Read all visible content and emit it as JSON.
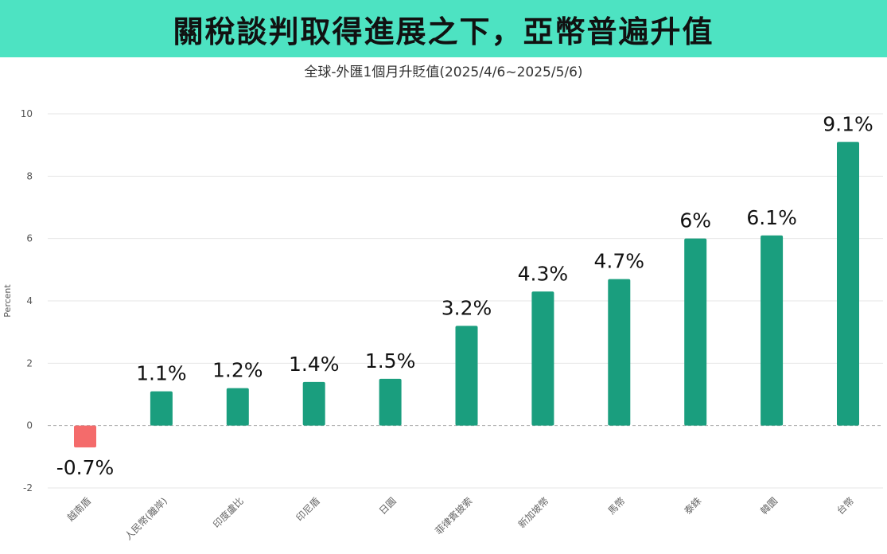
{
  "banner": {
    "title": "關稅談判取得進展之下，亞幣普遍升值",
    "background_color": "#4de3c2"
  },
  "chart_data": {
    "type": "bar",
    "title": "全球-外匯1個月升貶值(2025/4/6~2025/5/6)",
    "xlabel": "",
    "ylabel": "Percent",
    "ylim": [
      -2,
      10
    ],
    "yticks": [
      10,
      8,
      6,
      4,
      2,
      0,
      -2
    ],
    "grid": true,
    "legend": "none",
    "categories": [
      "越南盾",
      "人民幣(離岸)",
      "印度盧比",
      "印尼盾",
      "日圓",
      "菲律賓披索",
      "新加坡幣",
      "馬幣",
      "泰銖",
      "韓圜",
      "台幣"
    ],
    "values": [
      -0.7,
      1.1,
      1.2,
      1.4,
      1.5,
      3.2,
      4.3,
      4.7,
      6,
      6.1,
      9.1
    ],
    "data_labels": [
      "-0.7%",
      "1.1%",
      "1.2%",
      "1.4%",
      "1.5%",
      "3.2%",
      "4.3%",
      "4.7%",
      "6%",
      "6.1%",
      "9.1%"
    ],
    "positive_color": "#1a9e7e",
    "negative_color": "#f46b6b"
  }
}
